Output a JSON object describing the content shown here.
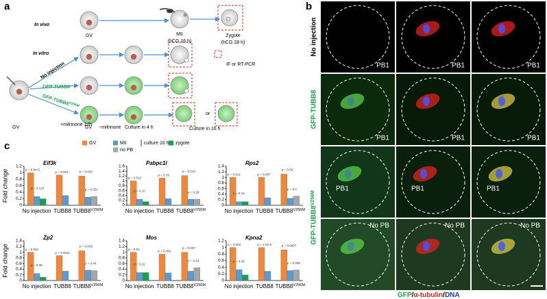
{
  "panel_a": {
    "label": "a",
    "in_vivo": "In vivo",
    "in_vitro": "In vitro",
    "gv1": "GV",
    "mii": "MII",
    "mii_time": "(hCG 16 h)",
    "zygote": "Zygote",
    "zygote_time": "(hCG 28 h)",
    "no_injection": "No injection",
    "gfp_tubb8": "GFP-TUBB8",
    "gfp_mut": "GFP-TUBB8V256M",
    "if_rt": "IF or RT-PCR",
    "milrinone": "+milrinone 12h",
    "gv2": "GV",
    "gv3": "GV",
    "minus_milrinone": "−milrinone",
    "culture4": "Culture in 4 h",
    "culture16": "Culture in 16 h",
    "or": "or"
  },
  "panel_b": {
    "label": "b",
    "rows": [
      {
        "label": "No injection",
        "pb_labels": [
          "PB1",
          "PB1",
          "PB1"
        ]
      },
      {
        "label": "GFP-TUBB8",
        "pb_labels": [
          "PB1",
          "PB1",
          "PB1"
        ]
      },
      {
        "label": "GFP-TUBB8V256M",
        "pb_labels": [
          "PB1",
          "PB1",
          "PB1"
        ]
      },
      {
        "label": "",
        "pb_labels": [
          "No PB",
          "No PB",
          "No PB"
        ]
      }
    ],
    "caption": [
      {
        "text": "GFP",
        "color": "#1aa04a"
      },
      {
        "text": "/",
        "color": "#000000"
      },
      {
        "text": "α-tubulin",
        "color": "#e2231a"
      },
      {
        "text": "/",
        "color": "#000000"
      },
      {
        "text": "DNA",
        "color": "#2233cc"
      }
    ]
  },
  "panel_c": {
    "label": "c",
    "legend": [
      {
        "name": "GV",
        "color": "#f0883a"
      },
      {
        "name": "MII",
        "color": "#5b9bd5"
      },
      {
        "name": "zygote",
        "color": "#1aa04a"
      },
      {
        "name": "no PB",
        "color": "#a6a6a6"
      }
    ],
    "legend_note": "culture 16 h"
  },
  "chart_data": [
    {
      "type": "bar",
      "title": "Eif3k",
      "ylabel": "Fold change",
      "categories": [
        "No injection",
        "TUBB8",
        "TUBB8V256M"
      ],
      "series": [
        {
          "values": [
            1.0,
            0.93,
            0.9
          ]
        },
        {
          "values": [
            0.27,
            0.3,
            0.25
          ]
        },
        {
          "values": [
            0.2,
            null,
            null
          ]
        },
        {
          "values": [
            null,
            null,
            0.27
          ]
        }
      ],
      "ylim": [
        0,
        1.2
      ],
      "yticks": [
        0,
        0.2,
        0.4,
        0.6,
        0.8,
        1,
        1.2
      ],
      "p_values": [
        "p = 6.6e-5",
        "p = 0.123",
        "p = 0.001",
        "p = 0.002",
        "p = 0.051"
      ]
    },
    {
      "type": "bar",
      "title": "Pabpc1l",
      "categories": [
        "No injection",
        "TUBB8",
        "TUBB8V256M"
      ],
      "series": [
        {
          "values": [
            1.0,
            1.12,
            1.22
          ]
        },
        {
          "values": [
            0.25,
            0.27,
            0.25
          ]
        },
        {
          "values": [
            0.15,
            null,
            null
          ]
        },
        {
          "values": [
            null,
            null,
            0.25
          ]
        }
      ],
      "ylim": [
        0,
        1.6
      ],
      "yticks": [
        0,
        0.2,
        0.4,
        0.6,
        0.8,
        1,
        1.2,
        1.4,
        1.6
      ],
      "p_values": [
        "p = 0.012",
        "p = 0.10",
        "p = 0.03",
        "p = 0.013",
        "p = 0.29"
      ]
    },
    {
      "type": "bar",
      "title": "Rps2",
      "categories": [
        "No injection",
        "TUBB8",
        "TUBB8V256M"
      ],
      "series": [
        {
          "values": [
            1.0,
            1.0,
            1.12
          ]
        },
        {
          "values": [
            0.13,
            0.27,
            0.25
          ]
        },
        {
          "values": [
            0.13,
            null,
            null
          ]
        },
        {
          "values": [
            null,
            null,
            0.33
          ]
        }
      ],
      "ylim": [
        0,
        1.4
      ],
      "yticks": [
        0,
        0.2,
        0.4,
        0.6,
        0.8,
        1,
        1.2,
        1.4
      ],
      "p_values": [
        "p = 0.011",
        "p = 0.10",
        "p = 0.007",
        "p = 0.04",
        "p = 0.4"
      ]
    },
    {
      "type": "bar",
      "title": "Zp2",
      "ylabel": "Fold change",
      "categories": [
        "No injection",
        "TUBB8",
        "TUBB8V256M"
      ],
      "series": [
        {
          "values": [
            1.0,
            0.88,
            1.05
          ]
        },
        {
          "values": [
            0.25,
            0.33,
            0.37
          ]
        },
        {
          "values": [
            0.12,
            null,
            null
          ]
        },
        {
          "values": [
            null,
            null,
            0.35
          ]
        }
      ],
      "ylim": [
        0,
        1.4
      ],
      "yticks": [
        0,
        0.2,
        0.4,
        0.6,
        0.8,
        1,
        1.2,
        1.4
      ],
      "p_values": [
        "p = 0.001",
        "p = 0.38",
        "p = 0.0011",
        "p = 0.003",
        "p = 0.44"
      ]
    },
    {
      "type": "bar",
      "title": "Mos",
      "categories": [
        "No injection",
        "TUBB8",
        "TUBB8V256M"
      ],
      "series": [
        {
          "values": [
            1.0,
            0.93,
            1.0
          ]
        },
        {
          "values": [
            0.28,
            0.27,
            0.33
          ]
        },
        {
          "values": [
            0.28,
            null,
            null
          ]
        },
        {
          "values": [
            null,
            null,
            0.45
          ]
        }
      ],
      "ylim": [
        0,
        1.4
      ],
      "yticks": [
        0,
        0.2,
        0.4,
        0.6,
        0.8,
        1,
        1.2,
        1.4
      ],
      "p_values": [
        "p = 0.03",
        "p = 0.22",
        "p = 0.002",
        "p = 0.007",
        "p = 0.19"
      ]
    },
    {
      "type": "bar",
      "title": "Kpna2",
      "categories": [
        "No injection",
        "TUBB8",
        "TUBB8V256M"
      ],
      "series": [
        {
          "values": [
            1.0,
            1.0,
            0.93
          ]
        },
        {
          "values": [
            0.33,
            0.28,
            0.3
          ]
        },
        {
          "values": [
            0.17,
            null,
            null
          ]
        },
        {
          "values": [
            null,
            null,
            0.32
          ]
        }
      ],
      "ylim": [
        0,
        1.2
      ],
      "yticks": [
        0,
        0.2,
        0.4,
        0.6,
        0.8,
        1,
        1.2
      ],
      "p_values": [
        "p = 0.002",
        "p = 0.08",
        "p = 2.2e-5",
        "p = 0.0007",
        "p = 0.065"
      ]
    }
  ]
}
